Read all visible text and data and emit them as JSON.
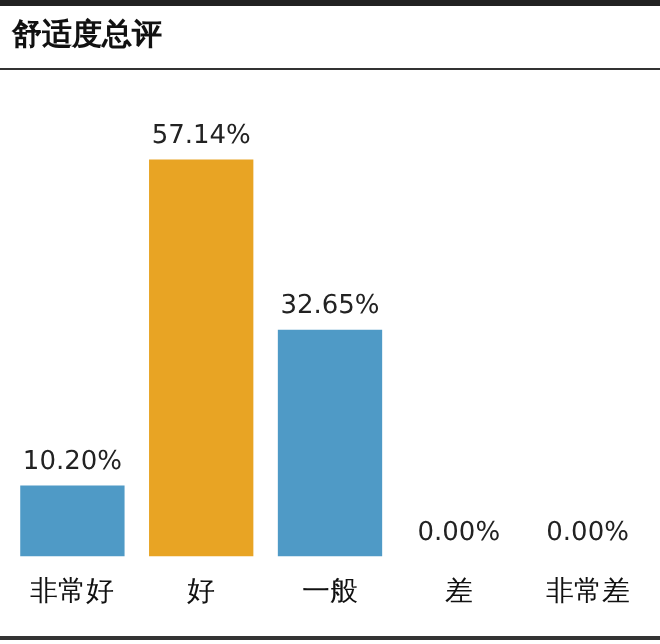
{
  "chart_data": {
    "type": "bar",
    "title": "舒适度总评",
    "categories": [
      "非常好",
      "好",
      "一般",
      "差",
      "非常差"
    ],
    "values": [
      10.2,
      57.14,
      32.65,
      0,
      0
    ],
    "colors": [
      "#4f9ac6",
      "#e8a424",
      "#4f9ac6",
      "#4f9ac6",
      "#4f9ac6"
    ],
    "value_labels": [
      "10.20%",
      "57.14%",
      "32.65%",
      "0.00%",
      "0.00%"
    ],
    "grid": false,
    "legend": false
  }
}
